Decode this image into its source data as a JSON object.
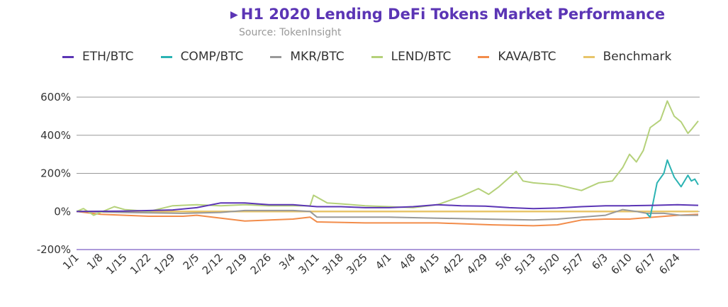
{
  "chart_data": {
    "type": "line",
    "title": "H1 2020 Lending DeFi Tokens Market Performance",
    "subtitle": "Source: TokenInsight",
    "ylim": [
      -200,
      600
    ],
    "yticks": [
      -200,
      0,
      200,
      400,
      600
    ],
    "ytick_labels": [
      "-200%",
      "0%",
      "200%",
      "400%",
      "600%"
    ],
    "xlim": [
      "2020-01-01",
      "2020-06-30"
    ],
    "xtick_labels": [
      "1/1",
      "1/8",
      "1/15",
      "1/22",
      "1/29",
      "2/5",
      "2/12",
      "2/19",
      "2/26",
      "3/4",
      "3/11",
      "3/18",
      "3/25",
      "4/1",
      "4/8",
      "4/15",
      "4/22",
      "4/29",
      "5/6",
      "5/13",
      "5/20",
      "5/27",
      "6/3",
      "6/10",
      "6/17",
      "6/24"
    ],
    "grid": true,
    "legend_position": "top",
    "series": [
      {
        "name": "ETH/BTC",
        "color": "#5b35b5",
        "points": [
          [
            "2020-01-01",
            0
          ],
          [
            "2020-01-15",
            2
          ],
          [
            "2020-01-29",
            8
          ],
          [
            "2020-02-05",
            20
          ],
          [
            "2020-02-12",
            45
          ],
          [
            "2020-02-19",
            45
          ],
          [
            "2020-02-26",
            35
          ],
          [
            "2020-03-04",
            35
          ],
          [
            "2020-03-11",
            25
          ],
          [
            "2020-03-18",
            25
          ],
          [
            "2020-03-25",
            20
          ],
          [
            "2020-04-01",
            20
          ],
          [
            "2020-04-08",
            25
          ],
          [
            "2020-04-15",
            35
          ],
          [
            "2020-04-22",
            30
          ],
          [
            "2020-04-29",
            28
          ],
          [
            "2020-05-06",
            20
          ],
          [
            "2020-05-13",
            15
          ],
          [
            "2020-05-20",
            18
          ],
          [
            "2020-05-27",
            25
          ],
          [
            "2020-06-03",
            30
          ],
          [
            "2020-06-10",
            30
          ],
          [
            "2020-06-17",
            32
          ],
          [
            "2020-06-24",
            35
          ],
          [
            "2020-06-30",
            32
          ]
        ]
      },
      {
        "name": "COMP/BTC",
        "color": "#2bb3b3",
        "points": [
          [
            "2020-06-15",
            -10
          ],
          [
            "2020-06-16",
            -30
          ],
          [
            "2020-06-18",
            150
          ],
          [
            "2020-06-20",
            200
          ],
          [
            "2020-06-21",
            270
          ],
          [
            "2020-06-23",
            180
          ],
          [
            "2020-06-25",
            130
          ],
          [
            "2020-06-27",
            190
          ],
          [
            "2020-06-28",
            160
          ],
          [
            "2020-06-29",
            170
          ],
          [
            "2020-06-30",
            140
          ]
        ]
      },
      {
        "name": "MKR/BTC",
        "color": "#999999",
        "points": [
          [
            "2020-01-01",
            0
          ],
          [
            "2020-01-15",
            -5
          ],
          [
            "2020-02-01",
            -10
          ],
          [
            "2020-02-12",
            -5
          ],
          [
            "2020-02-19",
            5
          ],
          [
            "2020-03-04",
            5
          ],
          [
            "2020-03-09",
            0
          ],
          [
            "2020-03-11",
            -30
          ],
          [
            "2020-03-18",
            -30
          ],
          [
            "2020-04-01",
            -30
          ],
          [
            "2020-04-15",
            -35
          ],
          [
            "2020-04-29",
            -40
          ],
          [
            "2020-05-13",
            -45
          ],
          [
            "2020-05-20",
            -40
          ],
          [
            "2020-05-27",
            -30
          ],
          [
            "2020-06-03",
            -20
          ],
          [
            "2020-06-08",
            10
          ],
          [
            "2020-06-12",
            0
          ],
          [
            "2020-06-15",
            -10
          ],
          [
            "2020-06-20",
            -10
          ],
          [
            "2020-06-25",
            -20
          ],
          [
            "2020-06-30",
            -20
          ]
        ]
      },
      {
        "name": "LEND/BTC",
        "color": "#b5d17a",
        "points": [
          [
            "2020-01-01",
            0
          ],
          [
            "2020-01-03",
            15
          ],
          [
            "2020-01-06",
            -20
          ],
          [
            "2020-01-12",
            25
          ],
          [
            "2020-01-15",
            10
          ],
          [
            "2020-01-22",
            0
          ],
          [
            "2020-01-29",
            30
          ],
          [
            "2020-02-05",
            35
          ],
          [
            "2020-02-12",
            30
          ],
          [
            "2020-02-19",
            35
          ],
          [
            "2020-02-26",
            30
          ],
          [
            "2020-03-04",
            30
          ],
          [
            "2020-03-09",
            30
          ],
          [
            "2020-03-10",
            85
          ],
          [
            "2020-03-14",
            45
          ],
          [
            "2020-03-18",
            40
          ],
          [
            "2020-03-25",
            30
          ],
          [
            "2020-04-01",
            25
          ],
          [
            "2020-04-08",
            20
          ],
          [
            "2020-04-15",
            35
          ],
          [
            "2020-04-22",
            80
          ],
          [
            "2020-04-27",
            120
          ],
          [
            "2020-04-30",
            90
          ],
          [
            "2020-05-03",
            130
          ],
          [
            "2020-05-08",
            210
          ],
          [
            "2020-05-10",
            160
          ],
          [
            "2020-05-13",
            150
          ],
          [
            "2020-05-20",
            140
          ],
          [
            "2020-05-27",
            110
          ],
          [
            "2020-06-01",
            150
          ],
          [
            "2020-06-05",
            160
          ],
          [
            "2020-06-08",
            230
          ],
          [
            "2020-06-10",
            300
          ],
          [
            "2020-06-12",
            260
          ],
          [
            "2020-06-14",
            320
          ],
          [
            "2020-06-16",
            440
          ],
          [
            "2020-06-19",
            480
          ],
          [
            "2020-06-21",
            580
          ],
          [
            "2020-06-23",
            500
          ],
          [
            "2020-06-25",
            470
          ],
          [
            "2020-06-27",
            410
          ],
          [
            "2020-06-28",
            430
          ],
          [
            "2020-06-30",
            475
          ]
        ]
      },
      {
        "name": "KAVA/BTC",
        "color": "#f28c4a",
        "points": [
          [
            "2020-01-01",
            0
          ],
          [
            "2020-01-08",
            -15
          ],
          [
            "2020-01-22",
            -25
          ],
          [
            "2020-02-01",
            -25
          ],
          [
            "2020-02-05",
            -20
          ],
          [
            "2020-02-19",
            -50
          ],
          [
            "2020-03-04",
            -40
          ],
          [
            "2020-03-09",
            -30
          ],
          [
            "2020-03-11",
            -55
          ],
          [
            "2020-03-25",
            -60
          ],
          [
            "2020-04-15",
            -60
          ],
          [
            "2020-05-01",
            -70
          ],
          [
            "2020-05-13",
            -75
          ],
          [
            "2020-05-20",
            -70
          ],
          [
            "2020-05-27",
            -45
          ],
          [
            "2020-06-03",
            -40
          ],
          [
            "2020-06-10",
            -40
          ],
          [
            "2020-06-17",
            -30
          ],
          [
            "2020-06-24",
            -20
          ],
          [
            "2020-06-30",
            -15
          ]
        ]
      },
      {
        "name": "Benchmark",
        "color": "#e8c56a",
        "points": [
          [
            "2020-01-01",
            0
          ],
          [
            "2020-06-30",
            0
          ]
        ]
      }
    ]
  }
}
